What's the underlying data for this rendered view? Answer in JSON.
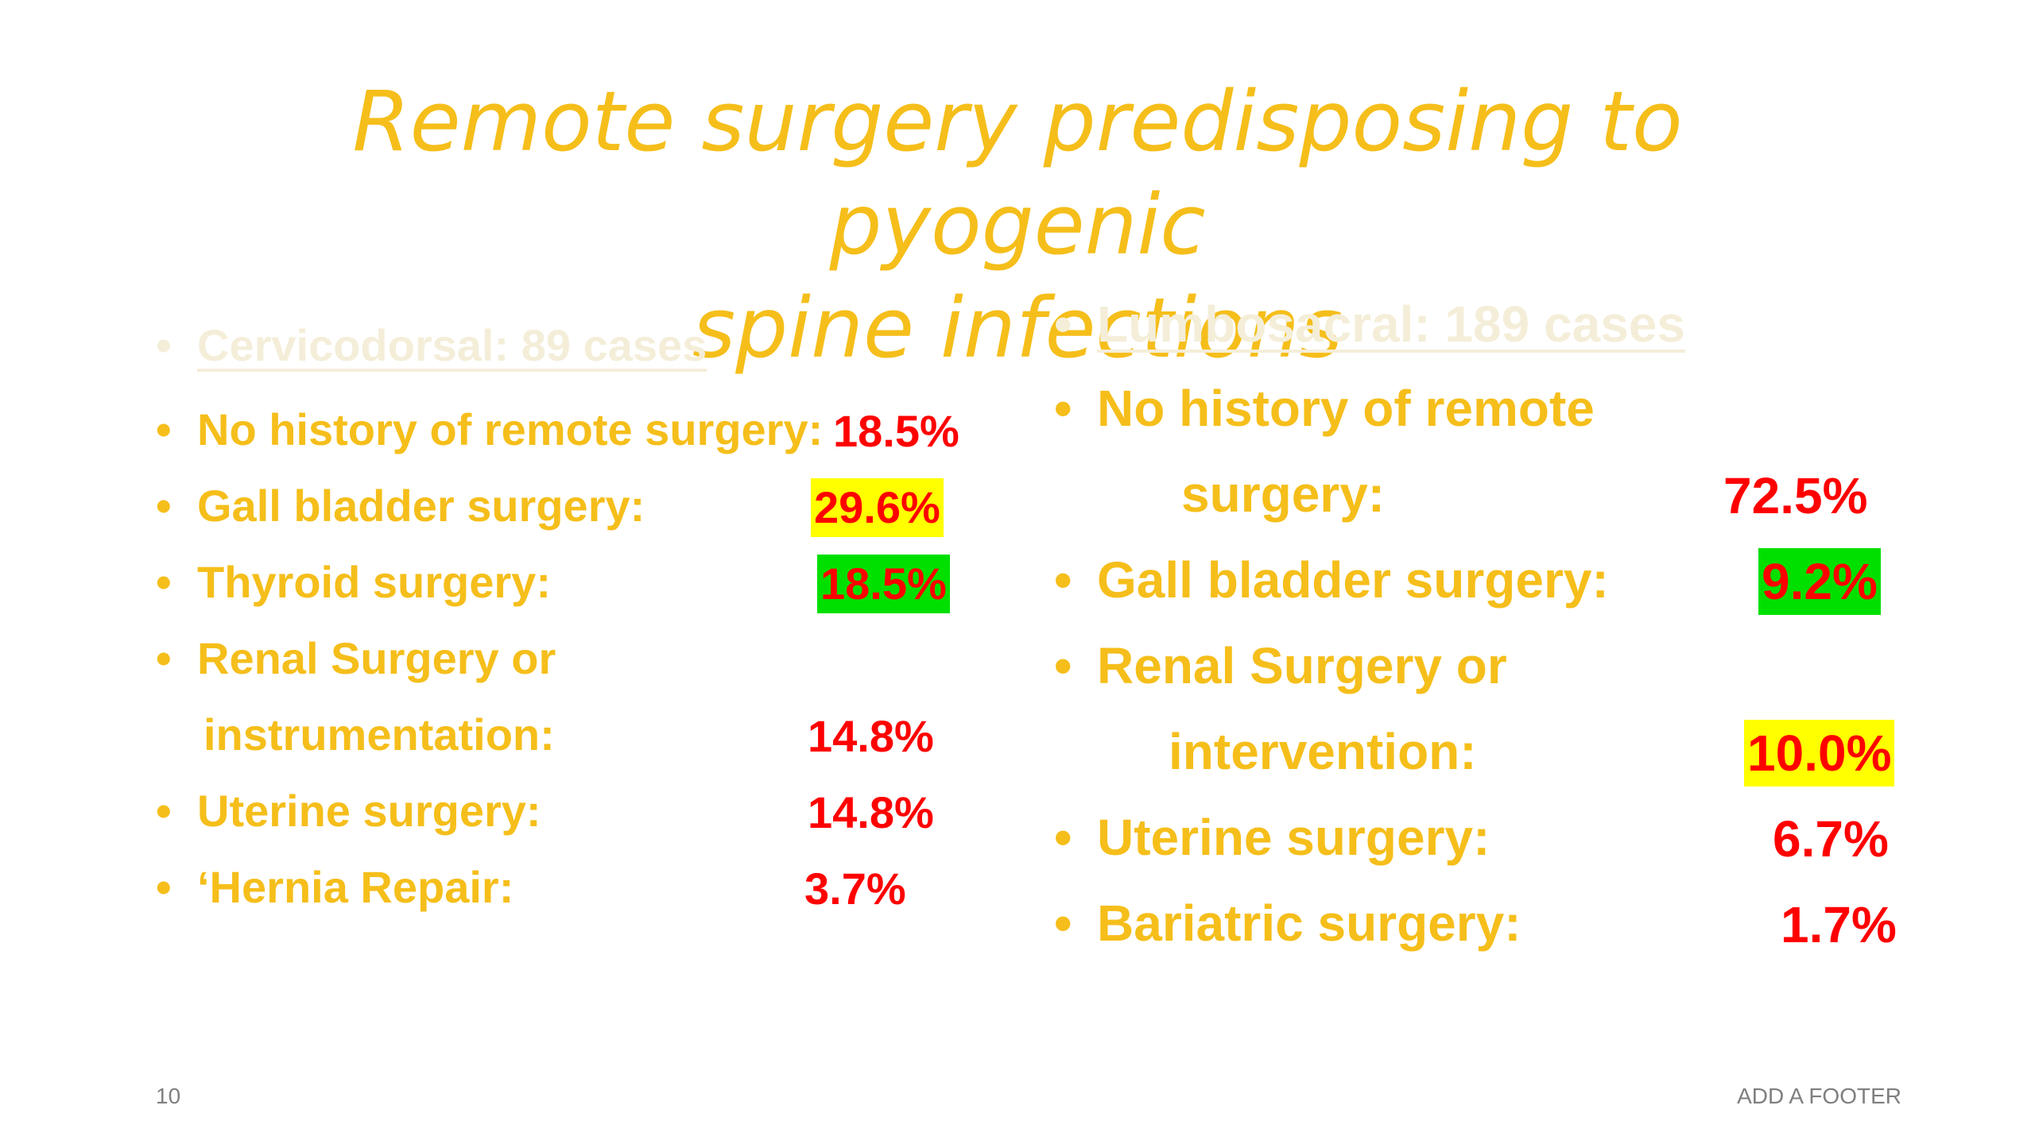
{
  "title": {
    "line1": "Remote surgery predisposing to pyogenic",
    "line2": "spine infections"
  },
  "left_column": {
    "header": "Cervicodorsal: 89 cases",
    "items": [
      {
        "label": "No history of remote surgery:",
        "value": "18.5%"
      },
      {
        "label": "Gall bladder surgery:",
        "value": "29.6%"
      },
      {
        "label": "Thyroid surgery:",
        "value": "18.5%"
      },
      {
        "label": "Renal Surgery or",
        "label2": "instrumentation:",
        "value": "14.8%"
      },
      {
        "label": "Uterine surgery:",
        "value": "14.8%"
      },
      {
        "label": "‘Hernia Repair:",
        "value": "3.7%"
      }
    ]
  },
  "right_column": {
    "header": "Lumbosacral: 189 cases",
    "items": [
      {
        "label": "No history of remote",
        "label2": "surgery:",
        "value": "72.5%"
      },
      {
        "label": "Gall bladder surgery:",
        "value": "9.2%"
      },
      {
        "label": "Renal Surgery or",
        "label2": "intervention:",
        "value": "10.0%"
      },
      {
        "label": "Uterine surgery:",
        "value": "6.7%"
      },
      {
        "label": "Bariatric surgery:",
        "value": "1.7%"
      }
    ]
  },
  "highlight_colors": {
    "yellow": "#ffff00",
    "green": "#00e000"
  },
  "footer": {
    "page_number": "10",
    "text": "ADD A FOOTER"
  }
}
